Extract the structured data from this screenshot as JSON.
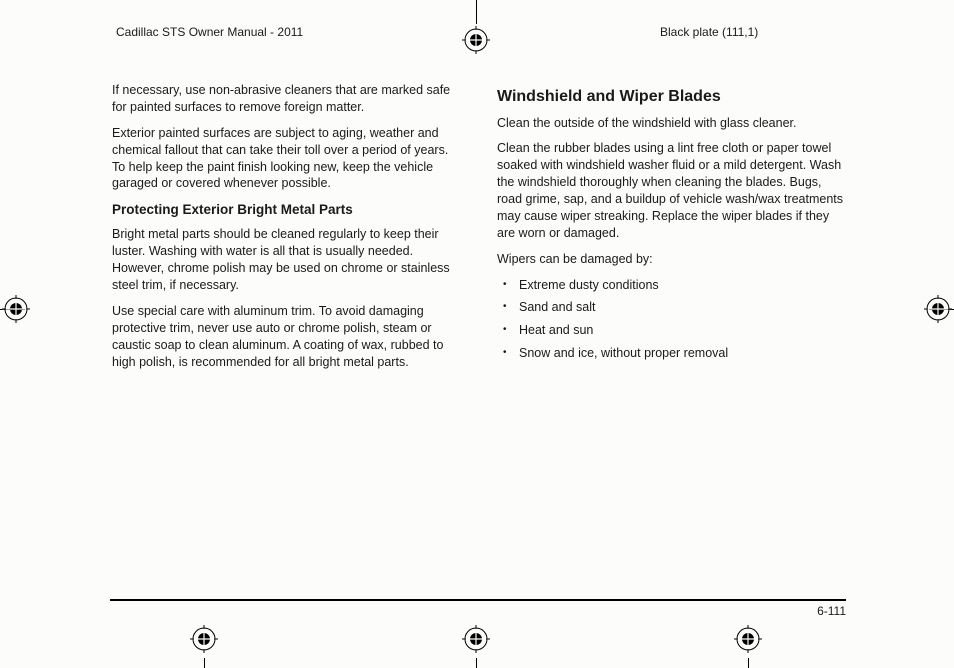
{
  "header": {
    "left": "Cadillac STS Owner Manual - 2011",
    "right": "Black plate (111,1)"
  },
  "left_col": {
    "p1": "If necessary, use non-abrasive cleaners that are marked safe for painted surfaces to remove foreign matter.",
    "p2": "Exterior painted surfaces are subject to aging, weather and chemical fallout that can take their toll over a period of years. To help keep the paint finish looking new, keep the vehicle garaged or covered whenever possible.",
    "h3": "Protecting Exterior Bright Metal Parts",
    "p3": "Bright metal parts should be cleaned regularly to keep their luster. Washing with water is all that is usually needed. However, chrome polish may be used on chrome or stainless steel trim, if necessary.",
    "p4": "Use special care with aluminum trim. To avoid damaging protective trim, never use auto or chrome polish, steam or caustic soap to clean aluminum. A coating of wax, rubbed to high polish, is recommended for all bright metal parts."
  },
  "right_col": {
    "h2": "Windshield and Wiper Blades",
    "p1": "Clean the outside of the windshield with glass cleaner.",
    "p2": "Clean the rubber blades using a lint free cloth or paper towel soaked with windshield washer fluid or a mild detergent. Wash the windshield thoroughly when cleaning the blades. Bugs, road grime, sap, and a buildup of vehicle wash/wax treatments may cause wiper streaking. Replace the wiper blades if they are worn or damaged.",
    "p3": "Wipers can be damaged by:",
    "bullets": [
      "Extreme dusty conditions",
      "Sand and salt",
      "Heat and sun",
      "Snow and ice, without proper removal"
    ]
  },
  "page_num": "6-111",
  "regmark_svg": {
    "stroke": "#000",
    "fill": "none",
    "size": 28
  }
}
